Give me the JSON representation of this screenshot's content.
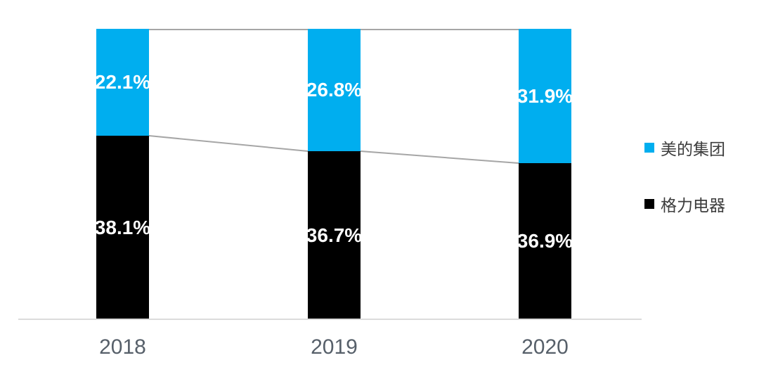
{
  "chart_data": {
    "type": "bar",
    "subtype": "stacked-column",
    "title": "",
    "categories": [
      "2018",
      "2019",
      "2020"
    ],
    "series": [
      {
        "name": "美的集团",
        "color": "#00AEEF",
        "stack_position": "top",
        "values": [
          22.1,
          26.8,
          31.9
        ],
        "labels": [
          "22.1%",
          "26.8%",
          "31.9%"
        ]
      },
      {
        "name": "格力电器",
        "color": "#000000",
        "stack_position": "bottom",
        "values": [
          38.1,
          36.7,
          36.9
        ],
        "labels": [
          "38.1%",
          "36.7%",
          "36.9%"
        ]
      }
    ],
    "xlabel": "",
    "ylabel": "",
    "grid": false,
    "columns_normalized_to_full_height": true,
    "series_connector_lines": true,
    "legend_position": "right",
    "value_label_color": "#ffffff",
    "x_tick_color": "#57606a",
    "axis_line_color": "#dcdcdc",
    "series_line_color": "#a6a6a6"
  },
  "legend": {
    "items": [
      {
        "label": "美的集团",
        "color": "#00AEEF"
      },
      {
        "label": "格力电器",
        "color": "#000000"
      }
    ]
  }
}
